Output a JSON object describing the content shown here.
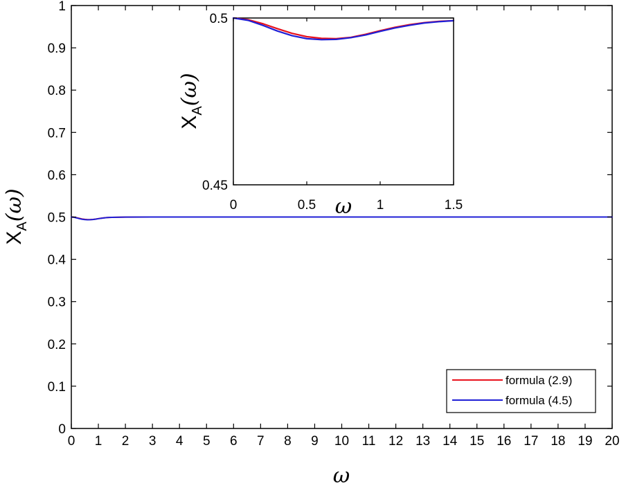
{
  "chart_data": [
    {
      "type": "line",
      "role": "main",
      "xlabel": "ω",
      "ylabel_main": "X",
      "ylabel_sub": "A",
      "ylabel_arg": "(ω)",
      "xlim": [
        0,
        20
      ],
      "ylim": [
        0,
        1
      ],
      "xticks": [
        0,
        1,
        2,
        3,
        4,
        5,
        6,
        7,
        8,
        9,
        10,
        11,
        12,
        13,
        14,
        15,
        16,
        17,
        18,
        19,
        20
      ],
      "xtick_labels": [
        "0",
        "1",
        "2",
        "3",
        "4",
        "5",
        "6",
        "7",
        "8",
        "9",
        "10",
        "11",
        "12",
        "13",
        "14",
        "15",
        "16",
        "17",
        "18",
        "19",
        "20"
      ],
      "yticks": [
        0,
        0.1,
        0.2,
        0.3,
        0.4,
        0.5,
        0.6,
        0.7,
        0.8,
        0.9,
        1
      ],
      "ytick_labels": [
        "0",
        "0.1",
        "0.2",
        "0.3",
        "0.4",
        "0.5",
        "0.6",
        "0.7",
        "0.8",
        "0.9",
        "1"
      ],
      "grid": false,
      "legend_position": "bottom-right",
      "series": [
        {
          "name": "formula (2.9)",
          "color": "#e8111c",
          "x": [
            0,
            0.1,
            0.2,
            0.3,
            0.4,
            0.5,
            0.6,
            0.7,
            0.8,
            0.9,
            1.0,
            1.1,
            1.2,
            1.3,
            1.4,
            1.5,
            2,
            3,
            4,
            6,
            10,
            15,
            20
          ],
          "y": [
            0.5,
            0.4995,
            0.4983,
            0.4968,
            0.4954,
            0.4944,
            0.4939,
            0.4938,
            0.4942,
            0.4951,
            0.4962,
            0.4972,
            0.498,
            0.4986,
            0.499,
            0.4992,
            0.4997,
            0.4999,
            0.5,
            0.5,
            0.5,
            0.5,
            0.5
          ]
        },
        {
          "name": "formula (4.5)",
          "color": "#1f1fd6",
          "x": [
            0,
            0.1,
            0.2,
            0.3,
            0.4,
            0.5,
            0.6,
            0.7,
            0.8,
            0.9,
            1.0,
            1.1,
            1.2,
            1.3,
            1.4,
            1.5,
            2,
            3,
            4,
            6,
            10,
            15,
            20
          ],
          "y": [
            0.5,
            0.4993,
            0.4978,
            0.4961,
            0.4947,
            0.4938,
            0.4935,
            0.4936,
            0.4941,
            0.4949,
            0.496,
            0.497,
            0.4978,
            0.4985,
            0.4989,
            0.4992,
            0.4997,
            0.4999,
            0.5,
            0.5,
            0.5,
            0.5,
            0.5
          ]
        }
      ]
    },
    {
      "type": "line",
      "role": "inset",
      "xlabel": "ω",
      "ylabel_main": "X",
      "ylabel_sub": "A",
      "ylabel_arg": "(ω)",
      "xlim": [
        0,
        1.5
      ],
      "ylim": [
        0.45,
        0.5
      ],
      "xticks": [
        0,
        0.5,
        1,
        1.5
      ],
      "xtick_labels": [
        "0",
        "0.5",
        "1",
        "1.5"
      ],
      "yticks": [
        0.45,
        0.5
      ],
      "ytick_labels": [
        "0.45",
        "0.5"
      ],
      "grid": false,
      "series": [
        {
          "color": "#e8111c",
          "x": [
            0,
            0.1,
            0.2,
            0.3,
            0.4,
            0.5,
            0.6,
            0.7,
            0.8,
            0.9,
            1.0,
            1.1,
            1.2,
            1.3,
            1.4,
            1.5
          ],
          "y": [
            0.5,
            0.4995,
            0.4983,
            0.4968,
            0.4954,
            0.4944,
            0.4939,
            0.4938,
            0.4942,
            0.4951,
            0.4962,
            0.4972,
            0.498,
            0.4986,
            0.499,
            0.4992
          ]
        },
        {
          "color": "#1f1fd6",
          "x": [
            0,
            0.1,
            0.2,
            0.3,
            0.4,
            0.5,
            0.6,
            0.7,
            0.8,
            0.9,
            1.0,
            1.1,
            1.2,
            1.3,
            1.4,
            1.5
          ],
          "y": [
            0.5,
            0.4993,
            0.4978,
            0.4961,
            0.4947,
            0.4938,
            0.4935,
            0.4936,
            0.4941,
            0.4949,
            0.496,
            0.497,
            0.4978,
            0.4985,
            0.4989,
            0.4992
          ]
        }
      ]
    }
  ]
}
